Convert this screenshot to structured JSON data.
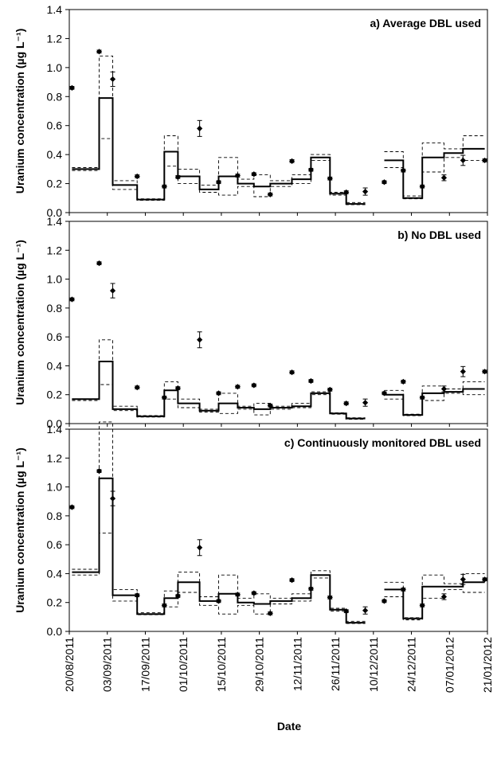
{
  "chart_data": {
    "type": "line",
    "x_axis": {
      "label": "Date",
      "range": [
        "2011-08-20",
        "2012-01-21"
      ],
      "ticks": [
        "20/08/2011",
        "03/09/2011",
        "17/09/2011",
        "01/10/2011",
        "15/10/2011",
        "29/10/2011",
        "12/11/2011",
        "26/11/2011",
        "10/12/2011",
        "24/12/2011",
        "07/01/2012",
        "21/01/2012"
      ]
    },
    "y_axis": {
      "label": "Uranium concentration (µg L⁻¹)",
      "range": [
        0,
        1.4
      ],
      "ticks": [
        "0.0",
        "0.2",
        "0.4",
        "0.6",
        "0.8",
        "1.0",
        "1.2",
        "1.4"
      ]
    },
    "legend": "none",
    "grid": false,
    "observed_points": [
      {
        "date": "2011-08-21",
        "y": 0.86,
        "err": 0.01
      },
      {
        "date": "2011-08-31",
        "y": 1.11,
        "err": 0.01
      },
      {
        "date": "2011-09-05",
        "y": 0.92,
        "err": 0.05
      },
      {
        "date": "2011-09-14",
        "y": 0.25,
        "err": 0.01
      },
      {
        "date": "2011-09-24",
        "y": 0.18,
        "err": 0.01
      },
      {
        "date": "2011-09-29",
        "y": 0.245,
        "err": 0.01
      },
      {
        "date": "2011-10-07",
        "y": 0.58,
        "err": 0.055
      },
      {
        "date": "2011-10-14",
        "y": 0.21,
        "err": 0.01
      },
      {
        "date": "2011-10-21",
        "y": 0.255,
        "err": 0.01
      },
      {
        "date": "2011-10-27",
        "y": 0.265,
        "err": 0.01
      },
      {
        "date": "2011-11-02",
        "y": 0.125,
        "err": 0.01
      },
      {
        "date": "2011-11-10",
        "y": 0.355,
        "err": 0.01
      },
      {
        "date": "2011-11-17",
        "y": 0.295,
        "err": 0.01
      },
      {
        "date": "2011-11-24",
        "y": 0.235,
        "err": 0.01
      },
      {
        "date": "2011-11-30",
        "y": 0.14,
        "err": 0.01
      },
      {
        "date": "2011-12-07",
        "y": 0.145,
        "err": 0.025
      },
      {
        "date": "2011-12-14",
        "y": 0.21,
        "err": 0.01
      },
      {
        "date": "2011-12-21",
        "y": 0.29,
        "err": 0.01
      },
      {
        "date": "2011-12-28",
        "y": 0.18,
        "err": 0.01
      },
      {
        "date": "2012-01-05",
        "y": 0.24,
        "err": 0.02
      },
      {
        "date": "2012-01-12",
        "y": 0.36,
        "err": 0.035
      },
      {
        "date": "2012-01-20",
        "y": 0.36,
        "err": 0.01
      }
    ],
    "panels": [
      {
        "title": "a) Average DBL used",
        "segments": [
          {
            "x0": "2011-08-21",
            "x1": "2011-08-31",
            "y": 0.3,
            "lo": 0.29,
            "hi": 0.31
          },
          {
            "x0": "2011-08-31",
            "x1": "2011-09-05",
            "y": 0.79,
            "lo": 0.51,
            "hi": 1.08
          },
          {
            "x0": "2011-09-05",
            "x1": "2011-09-14",
            "y": 0.19,
            "lo": 0.16,
            "hi": 0.22
          },
          {
            "x0": "2011-09-14",
            "x1": "2011-09-24",
            "y": 0.09,
            "lo": 0.085,
            "hi": 0.095
          },
          {
            "x0": "2011-09-24",
            "x1": "2011-09-29",
            "y": 0.42,
            "lo": 0.32,
            "hi": 0.53
          },
          {
            "x0": "2011-09-29",
            "x1": "2011-10-07",
            "y": 0.25,
            "lo": 0.2,
            "hi": 0.3
          },
          {
            "x0": "2011-10-07",
            "x1": "2011-10-14",
            "y": 0.16,
            "lo": 0.14,
            "hi": 0.19
          },
          {
            "x0": "2011-10-14",
            "x1": "2011-10-21",
            "y": 0.25,
            "lo": 0.12,
            "hi": 0.38
          },
          {
            "x0": "2011-10-21",
            "x1": "2011-10-27",
            "y": 0.2,
            "lo": 0.18,
            "hi": 0.23
          },
          {
            "x0": "2011-10-27",
            "x1": "2011-11-02",
            "y": 0.18,
            "lo": 0.11,
            "hi": 0.26
          },
          {
            "x0": "2011-11-02",
            "x1": "2011-11-10",
            "y": 0.2,
            "lo": 0.18,
            "hi": 0.22
          },
          {
            "x0": "2011-11-10",
            "x1": "2011-11-17",
            "y": 0.23,
            "lo": 0.2,
            "hi": 0.26
          },
          {
            "x0": "2011-11-17",
            "x1": "2011-11-24",
            "y": 0.38,
            "lo": 0.36,
            "hi": 0.4
          },
          {
            "x0": "2011-11-24",
            "x1": "2011-11-30",
            "y": 0.13,
            "lo": 0.12,
            "hi": 0.14
          },
          {
            "x0": "2011-11-30",
            "x1": "2011-12-07",
            "y": 0.06,
            "lo": 0.055,
            "hi": 0.07
          },
          {
            "x0": "2011-12-14",
            "x1": "2011-12-21",
            "y": 0.36,
            "lo": 0.31,
            "hi": 0.42
          },
          {
            "x0": "2011-12-21",
            "x1": "2011-12-28",
            "y": 0.1,
            "lo": 0.095,
            "hi": 0.115
          },
          {
            "x0": "2011-12-28",
            "x1": "2012-01-05",
            "y": 0.38,
            "lo": 0.28,
            "hi": 0.48
          },
          {
            "x0": "2012-01-05",
            "x1": "2012-01-12",
            "y": 0.41,
            "lo": 0.38,
            "hi": 0.44
          },
          {
            "x0": "2012-01-12",
            "x1": "2012-01-20",
            "y": 0.44,
            "lo": 0.36,
            "hi": 0.53
          }
        ]
      },
      {
        "title": "b) No DBL used",
        "segments": [
          {
            "x0": "2011-08-21",
            "x1": "2011-08-31",
            "y": 0.17,
            "lo": 0.16,
            "hi": 0.17
          },
          {
            "x0": "2011-08-31",
            "x1": "2011-09-05",
            "y": 0.43,
            "lo": 0.27,
            "hi": 0.58
          },
          {
            "x0": "2011-09-05",
            "x1": "2011-09-14",
            "y": 0.1,
            "lo": 0.09,
            "hi": 0.12
          },
          {
            "x0": "2011-09-14",
            "x1": "2011-09-24",
            "y": 0.05,
            "lo": 0.045,
            "hi": 0.055
          },
          {
            "x0": "2011-09-24",
            "x1": "2011-09-29",
            "y": 0.23,
            "lo": 0.17,
            "hi": 0.29
          },
          {
            "x0": "2011-09-29",
            "x1": "2011-10-07",
            "y": 0.14,
            "lo": 0.11,
            "hi": 0.17
          },
          {
            "x0": "2011-10-07",
            "x1": "2011-10-14",
            "y": 0.09,
            "lo": 0.08,
            "hi": 0.1
          },
          {
            "x0": "2011-10-14",
            "x1": "2011-10-21",
            "y": 0.14,
            "lo": 0.07,
            "hi": 0.21
          },
          {
            "x0": "2011-10-21",
            "x1": "2011-10-27",
            "y": 0.11,
            "lo": 0.1,
            "hi": 0.12
          },
          {
            "x0": "2011-10-27",
            "x1": "2011-11-02",
            "y": 0.1,
            "lo": 0.06,
            "hi": 0.14
          },
          {
            "x0": "2011-11-02",
            "x1": "2011-11-10",
            "y": 0.11,
            "lo": 0.1,
            "hi": 0.12
          },
          {
            "x0": "2011-11-10",
            "x1": "2011-11-17",
            "y": 0.12,
            "lo": 0.11,
            "hi": 0.14
          },
          {
            "x0": "2011-11-17",
            "x1": "2011-11-24",
            "y": 0.21,
            "lo": 0.2,
            "hi": 0.22
          },
          {
            "x0": "2011-11-24",
            "x1": "2011-11-30",
            "y": 0.07,
            "lo": 0.065,
            "hi": 0.075
          },
          {
            "x0": "2011-11-30",
            "x1": "2011-12-07",
            "y": 0.035,
            "lo": 0.03,
            "hi": 0.04
          },
          {
            "x0": "2011-12-14",
            "x1": "2011-12-21",
            "y": 0.2,
            "lo": 0.17,
            "hi": 0.23
          },
          {
            "x0": "2011-12-21",
            "x1": "2011-12-28",
            "y": 0.06,
            "lo": 0.055,
            "hi": 0.065
          },
          {
            "x0": "2011-12-28",
            "x1": "2012-01-05",
            "y": 0.21,
            "lo": 0.16,
            "hi": 0.26
          },
          {
            "x0": "2012-01-05",
            "x1": "2012-01-12",
            "y": 0.22,
            "lo": 0.21,
            "hi": 0.24
          },
          {
            "x0": "2012-01-12",
            "x1": "2012-01-20",
            "y": 0.24,
            "lo": 0.2,
            "hi": 0.29
          }
        ]
      },
      {
        "title": "c) Continuously monitored DBL used",
        "segments": [
          {
            "x0": "2011-08-21",
            "x1": "2011-08-31",
            "y": 0.41,
            "lo": 0.39,
            "hi": 0.43
          },
          {
            "x0": "2011-08-31",
            "x1": "2011-09-05",
            "y": 1.06,
            "lo": 0.68,
            "hi": 1.45
          },
          {
            "x0": "2011-09-05",
            "x1": "2011-09-14",
            "y": 0.25,
            "lo": 0.21,
            "hi": 0.29
          },
          {
            "x0": "2011-09-14",
            "x1": "2011-09-24",
            "y": 0.12,
            "lo": 0.115,
            "hi": 0.13
          },
          {
            "x0": "2011-09-24",
            "x1": "2011-09-29",
            "y": 0.23,
            "lo": 0.17,
            "hi": 0.28
          },
          {
            "x0": "2011-09-29",
            "x1": "2011-10-07",
            "y": 0.34,
            "lo": 0.27,
            "hi": 0.41
          },
          {
            "x0": "2011-10-07",
            "x1": "2011-10-14",
            "y": 0.21,
            "lo": 0.18,
            "hi": 0.24
          },
          {
            "x0": "2011-10-14",
            "x1": "2011-10-21",
            "y": 0.26,
            "lo": 0.12,
            "hi": 0.39
          },
          {
            "x0": "2011-10-21",
            "x1": "2011-10-27",
            "y": 0.2,
            "lo": 0.18,
            "hi": 0.23
          },
          {
            "x0": "2011-10-27",
            "x1": "2011-11-02",
            "y": 0.19,
            "lo": 0.12,
            "hi": 0.26
          },
          {
            "x0": "2011-11-02",
            "x1": "2011-11-10",
            "y": 0.21,
            "lo": 0.19,
            "hi": 0.23
          },
          {
            "x0": "2011-11-10",
            "x1": "2011-11-17",
            "y": 0.23,
            "lo": 0.21,
            "hi": 0.26
          },
          {
            "x0": "2011-11-17",
            "x1": "2011-11-24",
            "y": 0.39,
            "lo": 0.37,
            "hi": 0.42
          },
          {
            "x0": "2011-11-24",
            "x1": "2011-11-30",
            "y": 0.15,
            "lo": 0.14,
            "hi": 0.16
          },
          {
            "x0": "2011-11-30",
            "x1": "2011-12-07",
            "y": 0.06,
            "lo": 0.055,
            "hi": 0.07
          },
          {
            "x0": "2011-12-14",
            "x1": "2011-12-21",
            "y": 0.29,
            "lo": 0.24,
            "hi": 0.34
          },
          {
            "x0": "2011-12-21",
            "x1": "2011-12-28",
            "y": 0.09,
            "lo": 0.08,
            "hi": 0.095
          },
          {
            "x0": "2011-12-28",
            "x1": "2012-01-05",
            "y": 0.31,
            "lo": 0.23,
            "hi": 0.39
          },
          {
            "x0": "2012-01-05",
            "x1": "2012-01-12",
            "y": 0.31,
            "lo": 0.29,
            "hi": 0.33
          },
          {
            "x0": "2012-01-12",
            "x1": "2012-01-20",
            "y": 0.34,
            "lo": 0.27,
            "hi": 0.4
          }
        ]
      }
    ]
  }
}
